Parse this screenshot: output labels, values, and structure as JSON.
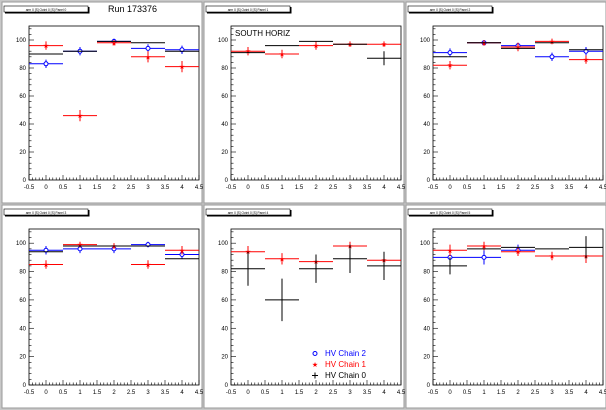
{
  "run_label": "Run 173376",
  "colors": {
    "chain2": "#0000ff",
    "chain1": "#ff0000",
    "chain0": "#000000"
  },
  "legend": {
    "chain2": "HV Chain 2",
    "chain1": "HV Chain 1",
    "chain0": "HV Chain 0"
  },
  "chart_data": [
    {
      "type": "scatter",
      "title": "",
      "pad_title": "arm 0 [S] Octnt 0 [S] Panel 0",
      "pad_label": "",
      "xlim": [
        -0.5,
        4.5
      ],
      "ylim": [
        0,
        110
      ],
      "xticks": [
        "-0.5",
        "0",
        "0.5",
        "1",
        "1.5",
        "2",
        "2.5",
        "3",
        "3.5",
        "4",
        "4.5"
      ],
      "yticks": [
        "0",
        "20",
        "40",
        "60",
        "80",
        "100"
      ],
      "series": [
        {
          "name": "HV Chain 2",
          "x": [
            0,
            1,
            2,
            3,
            4
          ],
          "y": [
            83,
            92,
            99,
            94,
            93
          ],
          "yerr": [
            3,
            3,
            2,
            3,
            3
          ]
        },
        {
          "name": "HV Chain 1",
          "x": [
            0,
            1,
            2,
            3,
            4
          ],
          "y": [
            96,
            46,
            98,
            88,
            81
          ],
          "yerr": [
            3,
            4,
            2,
            4,
            4
          ]
        },
        {
          "name": "HV Chain 0",
          "x": [
            0,
            1,
            2,
            3,
            4
          ],
          "y": [
            90,
            92,
            99,
            98,
            92
          ],
          "yerr": [
            0,
            0,
            0,
            0,
            0
          ]
        }
      ]
    },
    {
      "type": "scatter",
      "title": "",
      "pad_title": "arm 0 [S] Octnt 0 [S] Panel 1",
      "pad_label": "SOUTH HORIZ",
      "xlim": [
        -0.5,
        4.5
      ],
      "ylim": [
        0,
        110
      ],
      "xticks": [
        "-0.5",
        "0",
        "0.5",
        "1",
        "1.5",
        "2",
        "2.5",
        "3",
        "3.5",
        "4",
        "4.5"
      ],
      "yticks": [
        "0",
        "20",
        "40",
        "60",
        "80",
        "100"
      ],
      "series": [
        {
          "name": "HV Chain 2",
          "x": [],
          "y": [],
          "yerr": []
        },
        {
          "name": "HV Chain 1",
          "x": [
            0,
            1,
            2,
            3,
            4
          ],
          "y": [
            92,
            90,
            96,
            97,
            97
          ],
          "yerr": [
            3,
            3,
            3,
            2,
            2
          ]
        },
        {
          "name": "HV Chain 0",
          "x": [
            0,
            1,
            2,
            3,
            4
          ],
          "y": [
            91,
            96,
            99,
            97,
            87
          ],
          "yerr": [
            0,
            0,
            0,
            0,
            5
          ]
        }
      ]
    },
    {
      "type": "scatter",
      "title": "",
      "pad_title": "arm 0 [S] Octnt 0 [S] Panel 2",
      "pad_label": "",
      "xlim": [
        -0.5,
        4.5
      ],
      "ylim": [
        0,
        110
      ],
      "xticks": [
        "-0.5",
        "0",
        "0.5",
        "1",
        "1.5",
        "2",
        "2.5",
        "3",
        "3.5",
        "4",
        "4.5"
      ],
      "yticks": [
        "0",
        "20",
        "40",
        "60",
        "80",
        "100"
      ],
      "series": [
        {
          "name": "HV Chain 2",
          "x": [
            0,
            1,
            2,
            3,
            4
          ],
          "y": [
            91,
            98,
            96,
            88,
            92
          ],
          "yerr": [
            3,
            2,
            2,
            3,
            3
          ]
        },
        {
          "name": "HV Chain 1",
          "x": [
            0,
            1,
            2,
            3,
            4
          ],
          "y": [
            82,
            98,
            95,
            99,
            86
          ],
          "yerr": [
            3,
            2,
            3,
            2,
            3
          ]
        },
        {
          "name": "HV Chain 0",
          "x": [
            0,
            1,
            2,
            3,
            4
          ],
          "y": [
            88,
            98,
            94,
            98,
            93
          ],
          "yerr": [
            0,
            0,
            0,
            0,
            0
          ]
        }
      ]
    },
    {
      "type": "scatter",
      "title": "",
      "pad_title": "arm 0 [S] Octnt 0 [S] Panel 3",
      "pad_label": "",
      "xlim": [
        -0.5,
        4.5
      ],
      "ylim": [
        0,
        110
      ],
      "xticks": [
        "-0.5",
        "0",
        "0.5",
        "1",
        "1.5",
        "2",
        "2.5",
        "3",
        "3.5",
        "4",
        "4.5"
      ],
      "yticks": [
        "0",
        "20",
        "40",
        "60",
        "80",
        "100"
      ],
      "series": [
        {
          "name": "HV Chain 2",
          "x": [
            0,
            1,
            2,
            3,
            4
          ],
          "y": [
            95,
            96,
            96,
            99,
            92
          ],
          "yerr": [
            3,
            3,
            3,
            2,
            3
          ]
        },
        {
          "name": "HV Chain 1",
          "x": [
            0,
            1,
            2,
            3,
            4
          ],
          "y": [
            85,
            99,
            98,
            85,
            95
          ],
          "yerr": [
            3,
            2,
            2,
            3,
            3
          ]
        },
        {
          "name": "HV Chain 0",
          "x": [
            0,
            1,
            2,
            3,
            4
          ],
          "y": [
            94,
            98,
            98,
            98,
            89
          ],
          "yerr": [
            0,
            0,
            0,
            0,
            0
          ]
        }
      ]
    },
    {
      "type": "scatter",
      "title": "",
      "pad_title": "arm 0 [S] Octnt 0 [S] Panel 4",
      "pad_label": "",
      "xlim": [
        -0.5,
        4.5
      ],
      "ylim": [
        0,
        110
      ],
      "xticks": [
        "-0.5",
        "0",
        "0.5",
        "1",
        "1.5",
        "2",
        "2.5",
        "3",
        "3.5",
        "4",
        "4.5"
      ],
      "yticks": [
        "0",
        "20",
        "40",
        "60",
        "80",
        "100"
      ],
      "series": [
        {
          "name": "HV Chain 2",
          "x": [],
          "y": [],
          "yerr": []
        },
        {
          "name": "HV Chain 1",
          "x": [
            0,
            1,
            2,
            3,
            4
          ],
          "y": [
            94,
            89,
            87,
            98,
            88
          ],
          "yerr": [
            4,
            4,
            5,
            3,
            4
          ]
        },
        {
          "name": "HV Chain 0",
          "x": [
            0,
            1,
            2,
            3,
            4
          ],
          "y": [
            82,
            60,
            82,
            89,
            84
          ],
          "yerr": [
            12,
            15,
            10,
            10,
            10
          ]
        }
      ]
    },
    {
      "type": "scatter",
      "title": "",
      "pad_title": "arm 0 [S] Octnt 0 [S] Panel 5",
      "pad_label": "",
      "xlim": [
        -0.5,
        4.5
      ],
      "ylim": [
        0,
        110
      ],
      "xticks": [
        "-0.5",
        "0",
        "0.5",
        "1",
        "1.5",
        "2",
        "2.5",
        "3",
        "3.5",
        "4",
        "4.5"
      ],
      "yticks": [
        "0",
        "20",
        "40",
        "60",
        "80",
        "100"
      ],
      "series": [
        {
          "name": "HV Chain 2",
          "x": [
            0,
            1,
            2
          ],
          "y": [
            90,
            90,
            95
          ],
          "yerr": [
            5,
            5,
            4
          ]
        },
        {
          "name": "HV Chain 1",
          "x": [
            0,
            1,
            2,
            3,
            4
          ],
          "y": [
            95,
            98,
            94,
            91,
            91
          ],
          "yerr": [
            4,
            3,
            3,
            3,
            5
          ]
        },
        {
          "name": "HV Chain 0",
          "x": [
            0,
            1,
            2,
            3,
            4
          ],
          "y": [
            84,
            96,
            97,
            96,
            97
          ],
          "yerr": [
            6,
            0,
            0,
            0,
            8
          ]
        }
      ]
    }
  ]
}
